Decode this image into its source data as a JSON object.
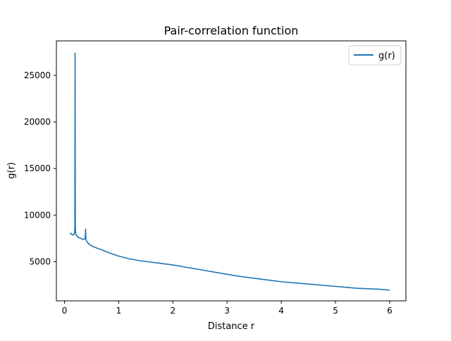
{
  "chart_data": {
    "type": "line",
    "title": "Pair-correlation function",
    "xlabel": "Distance r",
    "ylabel": "g(r)",
    "xlim": [
      -0.15,
      6.3
    ],
    "ylim": [
      800,
      28700
    ],
    "xticks": [
      0,
      1,
      2,
      3,
      4,
      5,
      6
    ],
    "yticks": [
      5000,
      10000,
      15000,
      20000,
      25000
    ],
    "legend_position": "top-right",
    "grid": false,
    "series": [
      {
        "name": "g(r)",
        "color": "#1f77b4",
        "x": [
          0.1,
          0.12,
          0.14,
          0.16,
          0.18,
          0.19,
          0.195,
          0.2,
          0.205,
          0.21,
          0.22,
          0.24,
          0.26,
          0.28,
          0.3,
          0.32,
          0.34,
          0.36,
          0.38,
          0.39,
          0.395,
          0.4,
          0.41,
          0.42,
          0.45,
          0.5,
          0.6,
          0.7,
          0.8,
          0.9,
          1.0,
          1.2,
          1.4,
          1.6,
          1.8,
          2.0,
          2.2,
          2.4,
          2.6,
          2.8,
          3.0,
          3.2,
          3.4,
          3.6,
          3.8,
          4.0,
          4.2,
          4.4,
          4.6,
          4.8,
          5.0,
          5.2,
          5.4,
          5.6,
          5.8,
          6.0
        ],
        "y": [
          7950,
          8050,
          7900,
          7850,
          8000,
          8400,
          27400,
          9000,
          8100,
          7900,
          7800,
          7700,
          7600,
          7550,
          7500,
          7450,
          7400,
          7400,
          7500,
          8500,
          7400,
          7300,
          7200,
          7100,
          6900,
          6700,
          6450,
          6250,
          6000,
          5800,
          5600,
          5300,
          5100,
          4950,
          4800,
          4650,
          4450,
          4250,
          4050,
          3850,
          3650,
          3450,
          3300,
          3150,
          3000,
          2850,
          2750,
          2650,
          2550,
          2450,
          2350,
          2250,
          2150,
          2100,
          2050,
          1950
        ]
      }
    ]
  }
}
